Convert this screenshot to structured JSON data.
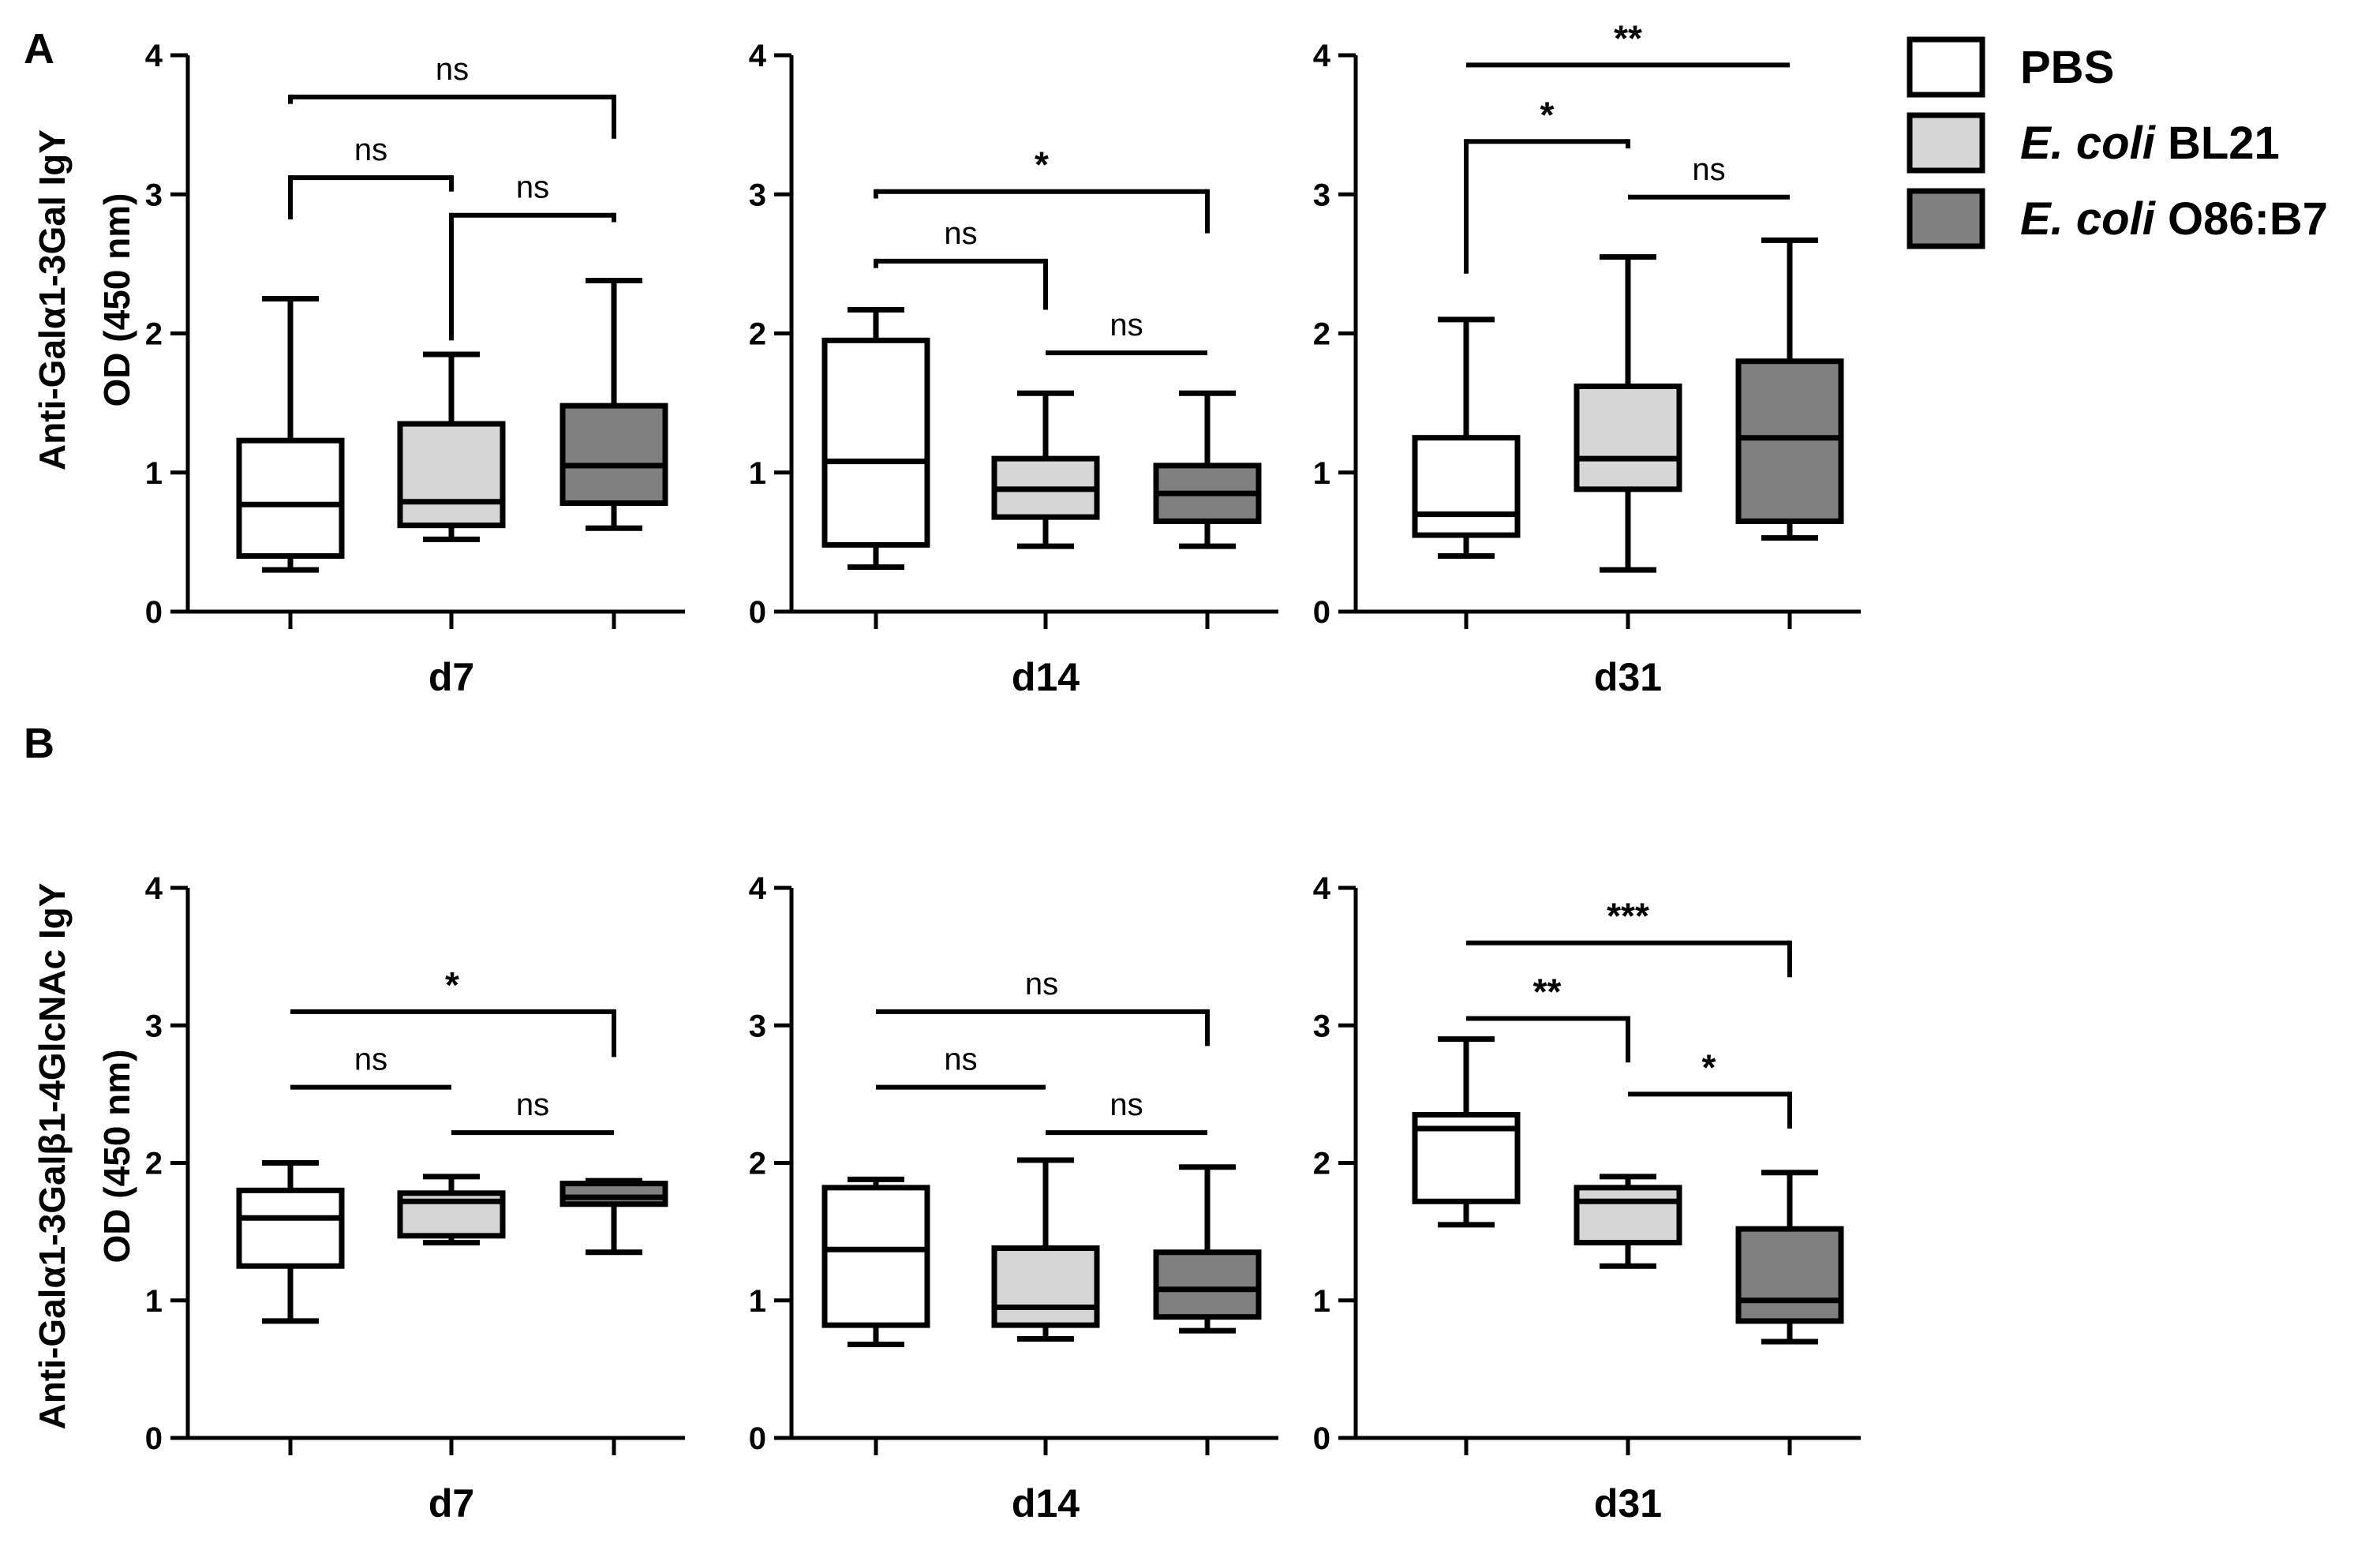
{
  "colors": {
    "PBS": "#ffffff",
    "BL21": "#d6d6d6",
    "O86B7": "#808080",
    "stroke": "#000000"
  },
  "legend": [
    {
      "key": "PBS",
      "italic": "",
      "text": "PBS"
    },
    {
      "key": "BL21",
      "italic": "E. coli",
      "text": " BL21"
    },
    {
      "key": "O86B7",
      "italic": "E. coli",
      "text": " O86:B7"
    }
  ],
  "panels": [
    {
      "letter": "A",
      "ylabel_line1": "Anti-Galα1-3Gal IgY",
      "ylabel_line2": "OD (450 nm)",
      "charts": [
        {
          "xlabel": "d7",
          "boxes": [
            {
              "key": "PBS",
              "min": 0.3,
              "q1": 0.4,
              "median": 0.77,
              "q3": 1.23,
              "max": 2.25
            },
            {
              "key": "BL21",
              "min": 0.52,
              "q1": 0.62,
              "median": 0.79,
              "q3": 1.35,
              "max": 1.85
            },
            {
              "key": "O86B7",
              "min": 0.6,
              "q1": 0.78,
              "median": 1.05,
              "q3": 1.48,
              "max": 2.38
            }
          ],
          "sig": [
            {
              "from": 0,
              "to": 2,
              "y": 3.7,
              "label": "ns",
              "left_drop": 0.05,
              "right_drop": 0.3
            },
            {
              "from": 0,
              "to": 1,
              "y": 3.12,
              "label": "ns",
              "left_drop": 0.3,
              "right_drop": 0.1
            },
            {
              "from": 1,
              "to": 2,
              "y": 2.85,
              "label": "ns",
              "left_drop": 0.9,
              "right_drop": 0.05
            }
          ]
        },
        {
          "xlabel": "d14",
          "boxes": [
            {
              "key": "PBS",
              "min": 0.32,
              "q1": 0.48,
              "median": 1.08,
              "q3": 1.95,
              "max": 2.17
            },
            {
              "key": "BL21",
              "min": 0.47,
              "q1": 0.68,
              "median": 0.88,
              "q3": 1.1,
              "max": 1.57
            },
            {
              "key": "O86B7",
              "min": 0.47,
              "q1": 0.65,
              "median": 0.85,
              "q3": 1.05,
              "max": 1.57
            }
          ],
          "sig": [
            {
              "from": 0,
              "to": 2,
              "y": 3.02,
              "label": "*",
              "left_drop": 0.05,
              "right_drop": 0.3
            },
            {
              "from": 0,
              "to": 1,
              "y": 2.52,
              "label": "ns",
              "left_drop": 0.05,
              "right_drop": 0.35
            },
            {
              "from": 1,
              "to": 2,
              "y": 1.86,
              "label": "ns",
              "left_drop": 0,
              "right_drop": 0
            }
          ]
        },
        {
          "xlabel": "d31",
          "boxes": [
            {
              "key": "PBS",
              "min": 0.4,
              "q1": 0.55,
              "median": 0.7,
              "q3": 1.25,
              "max": 2.1
            },
            {
              "key": "BL21",
              "min": 0.3,
              "q1": 0.88,
              "median": 1.1,
              "q3": 1.62,
              "max": 2.55
            },
            {
              "key": "O86B7",
              "min": 0.53,
              "q1": 0.65,
              "median": 1.25,
              "q3": 1.8,
              "max": 2.67
            }
          ],
          "sig": [
            {
              "from": 0,
              "to": 2,
              "y": 3.93,
              "label": "**",
              "left_drop": 0,
              "right_drop": 0
            },
            {
              "from": 0,
              "to": 1,
              "y": 3.38,
              "label": "*",
              "left_drop": 0.95,
              "right_drop": 0.05
            },
            {
              "from": 1,
              "to": 2,
              "y": 2.98,
              "label": "ns",
              "left_drop": 0,
              "right_drop": 0
            }
          ]
        }
      ]
    },
    {
      "letter": "B",
      "ylabel_line1": "Anti-Galα1-3Galβ1-4GlcNAc IgY",
      "ylabel_line2": "OD (450 nm)",
      "charts": [
        {
          "xlabel": "d7",
          "boxes": [
            {
              "key": "PBS",
              "min": 0.85,
              "q1": 1.25,
              "median": 1.6,
              "q3": 1.8,
              "max": 2.0
            },
            {
              "key": "BL21",
              "min": 1.42,
              "q1": 1.47,
              "median": 1.72,
              "q3": 1.78,
              "max": 1.9
            },
            {
              "key": "O86B7",
              "min": 1.35,
              "q1": 1.7,
              "median": 1.75,
              "q3": 1.85,
              "max": 1.87
            }
          ],
          "sig": [
            {
              "from": 0,
              "to": 2,
              "y": 3.1,
              "label": "*",
              "left_drop": 0,
              "right_drop": 0.33
            },
            {
              "from": 0,
              "to": 1,
              "y": 2.55,
              "label": "ns",
              "left_drop": 0,
              "right_drop": 0
            },
            {
              "from": 1,
              "to": 2,
              "y": 2.22,
              "label": "ns",
              "left_drop": 0,
              "right_drop": 0
            }
          ]
        },
        {
          "xlabel": "d14",
          "boxes": [
            {
              "key": "PBS",
              "min": 0.68,
              "q1": 0.82,
              "median": 1.37,
              "q3": 1.82,
              "max": 1.88
            },
            {
              "key": "BL21",
              "min": 0.72,
              "q1": 0.82,
              "median": 0.95,
              "q3": 1.38,
              "max": 2.02
            },
            {
              "key": "O86B7",
              "min": 0.78,
              "q1": 0.88,
              "median": 1.08,
              "q3": 1.35,
              "max": 1.97
            }
          ],
          "sig": [
            {
              "from": 0,
              "to": 2,
              "y": 3.1,
              "label": "ns",
              "left_drop": 0,
              "right_drop": 0.25
            },
            {
              "from": 0,
              "to": 1,
              "y": 2.55,
              "label": "ns",
              "left_drop": 0,
              "right_drop": 0
            },
            {
              "from": 1,
              "to": 2,
              "y": 2.22,
              "label": "ns",
              "left_drop": 0,
              "right_drop": 0
            }
          ]
        },
        {
          "xlabel": "d31",
          "boxes": [
            {
              "key": "PBS",
              "min": 1.55,
              "q1": 1.72,
              "median": 2.25,
              "q3": 2.35,
              "max": 2.9
            },
            {
              "key": "BL21",
              "min": 1.25,
              "q1": 1.42,
              "median": 1.72,
              "q3": 1.82,
              "max": 1.9
            },
            {
              "key": "O86B7",
              "min": 0.7,
              "q1": 0.85,
              "median": 1.0,
              "q3": 1.52,
              "max": 1.93
            }
          ],
          "sig": [
            {
              "from": 0,
              "to": 2,
              "y": 3.6,
              "label": "***",
              "left_drop": 0,
              "right_drop": 0.25
            },
            {
              "from": 0,
              "to": 1,
              "y": 3.05,
              "label": "**",
              "left_drop": 0,
              "right_drop": 0.32
            },
            {
              "from": 1,
              "to": 2,
              "y": 2.5,
              "label": "*",
              "left_drop": 0,
              "right_drop": 0.25
            }
          ]
        }
      ]
    }
  ],
  "chart_data": [
    {
      "type": "box",
      "panel": "A",
      "ylabel": "Anti-Galα1-3Gal IgY OD (450 nm)",
      "ylim": [
        0,
        4
      ],
      "yticks": [
        0,
        1,
        2,
        3,
        4
      ],
      "groups": [
        "d7",
        "d14",
        "d31"
      ],
      "series": [
        {
          "name": "PBS",
          "values": [
            {
              "min": 0.3,
              "q1": 0.4,
              "median": 0.77,
              "q3": 1.23,
              "max": 2.25
            },
            {
              "min": 0.32,
              "q1": 0.48,
              "median": 1.08,
              "q3": 1.95,
              "max": 2.17
            },
            {
              "min": 0.4,
              "q1": 0.55,
              "median": 0.7,
              "q3": 1.25,
              "max": 2.1
            }
          ]
        },
        {
          "name": "E. coli BL21",
          "values": [
            {
              "min": 0.52,
              "q1": 0.62,
              "median": 0.79,
              "q3": 1.35,
              "max": 1.85
            },
            {
              "min": 0.47,
              "q1": 0.68,
              "median": 0.88,
              "q3": 1.1,
              "max": 1.57
            },
            {
              "min": 0.3,
              "q1": 0.88,
              "median": 1.1,
              "q3": 1.62,
              "max": 2.55
            }
          ]
        },
        {
          "name": "E. coli O86:B7",
          "values": [
            {
              "min": 0.6,
              "q1": 0.78,
              "median": 1.05,
              "q3": 1.48,
              "max": 2.38
            },
            {
              "min": 0.47,
              "q1": 0.65,
              "median": 0.85,
              "q3": 1.05,
              "max": 1.57
            },
            {
              "min": 0.53,
              "q1": 0.65,
              "median": 1.25,
              "q3": 1.8,
              "max": 2.67
            }
          ]
        }
      ],
      "significance": {
        "d7": {
          "PBS vs BL21": "ns",
          "BL21 vs O86:B7": "ns",
          "PBS vs O86:B7": "ns"
        },
        "d14": {
          "PBS vs BL21": "ns",
          "BL21 vs O86:B7": "ns",
          "PBS vs O86:B7": "*"
        },
        "d31": {
          "PBS vs BL21": "*",
          "BL21 vs O86:B7": "ns",
          "PBS vs O86:B7": "**"
        }
      },
      "legend_position": "top-right"
    },
    {
      "type": "box",
      "panel": "B",
      "ylabel": "Anti-Galα1-3Galβ1-4GlcNAc IgY OD (450 nm)",
      "ylim": [
        0,
        4
      ],
      "yticks": [
        0,
        1,
        2,
        3,
        4
      ],
      "groups": [
        "d7",
        "d14",
        "d31"
      ],
      "series": [
        {
          "name": "PBS",
          "values": [
            {
              "min": 0.85,
              "q1": 1.25,
              "median": 1.6,
              "q3": 1.8,
              "max": 2.0
            },
            {
              "min": 0.68,
              "q1": 0.82,
              "median": 1.37,
              "q3": 1.82,
              "max": 1.88
            },
            {
              "min": 1.55,
              "q1": 1.72,
              "median": 2.25,
              "q3": 2.35,
              "max": 2.9
            }
          ]
        },
        {
          "name": "E. coli BL21",
          "values": [
            {
              "min": 1.42,
              "q1": 1.47,
              "median": 1.72,
              "q3": 1.78,
              "max": 1.9
            },
            {
              "min": 0.72,
              "q1": 0.82,
              "median": 0.95,
              "q3": 1.38,
              "max": 2.02
            },
            {
              "min": 1.25,
              "q1": 1.42,
              "median": 1.72,
              "q3": 1.82,
              "max": 1.9
            }
          ]
        },
        {
          "name": "E. coli O86:B7",
          "values": [
            {
              "min": 1.35,
              "q1": 1.7,
              "median": 1.75,
              "q3": 1.85,
              "max": 1.87
            },
            {
              "min": 0.78,
              "q1": 0.88,
              "median": 1.08,
              "q3": 1.35,
              "max": 1.97
            },
            {
              "min": 0.7,
              "q1": 0.85,
              "median": 1.0,
              "q3": 1.52,
              "max": 1.93
            }
          ]
        }
      ],
      "significance": {
        "d7": {
          "PBS vs BL21": "ns",
          "BL21 vs O86:B7": "ns",
          "PBS vs O86:B7": "*"
        },
        "d14": {
          "PBS vs BL21": "ns",
          "BL21 vs O86:B7": "ns",
          "PBS vs O86:B7": "ns"
        },
        "d31": {
          "PBS vs BL21": "**",
          "BL21 vs O86:B7": "*",
          "PBS vs O86:B7": "***"
        }
      }
    }
  ]
}
